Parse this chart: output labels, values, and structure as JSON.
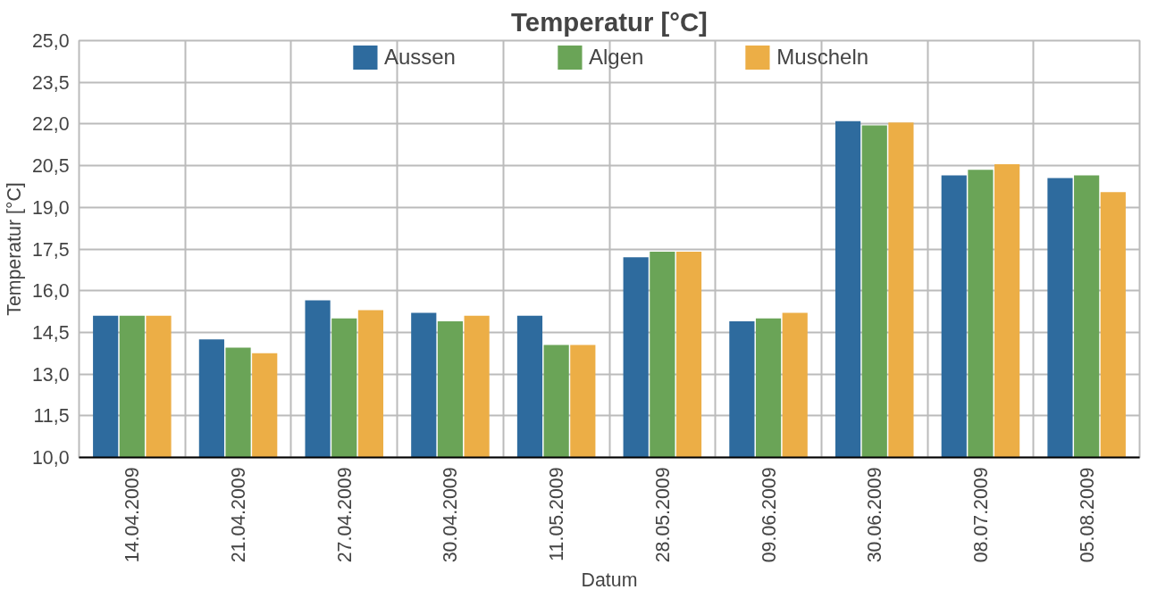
{
  "chart_data": {
    "type": "bar",
    "title": "Temperatur [°C]",
    "xlabel": "Datum",
    "ylabel": "Temperatur [°C]",
    "categories": [
      "14.04.2009",
      "21.04.2009",
      "27.04.2009",
      "30.04.2009",
      "11.05.2009",
      "28.05.2009",
      "09.06.2009",
      "30.06.2009",
      "08.07.2009",
      "05.08.2009"
    ],
    "series": [
      {
        "name": "Aussen",
        "color": "#2e6b9e",
        "values": [
          15.1,
          14.25,
          15.65,
          15.2,
          15.1,
          17.2,
          14.9,
          22.1,
          20.15,
          20.05
        ]
      },
      {
        "name": "Algen",
        "color": "#6aa457",
        "values": [
          15.1,
          13.95,
          15.0,
          14.9,
          14.05,
          17.4,
          15.0,
          21.95,
          20.35,
          20.15
        ]
      },
      {
        "name": "Muscheln",
        "color": "#ecae46",
        "values": [
          15.1,
          13.75,
          15.3,
          15.1,
          14.05,
          17.4,
          15.2,
          22.05,
          20.55,
          19.55
        ]
      }
    ],
    "ylim": [
      10,
      25
    ],
    "yticks": [
      {
        "value": 10,
        "label": "10,0"
      },
      {
        "value": 11.5,
        "label": "11,5"
      },
      {
        "value": 13,
        "label": "13,0"
      },
      {
        "value": 14.5,
        "label": "14,5"
      },
      {
        "value": 16,
        "label": "16,0"
      },
      {
        "value": 17.5,
        "label": "17,5"
      },
      {
        "value": 19,
        "label": "19,0"
      },
      {
        "value": 20.5,
        "label": "20,5"
      },
      {
        "value": 22,
        "label": "22,0"
      },
      {
        "value": 23.5,
        "label": "23,5"
      },
      {
        "value": 25,
        "label": "25,0"
      }
    ],
    "grid": true,
    "legend": "top"
  }
}
